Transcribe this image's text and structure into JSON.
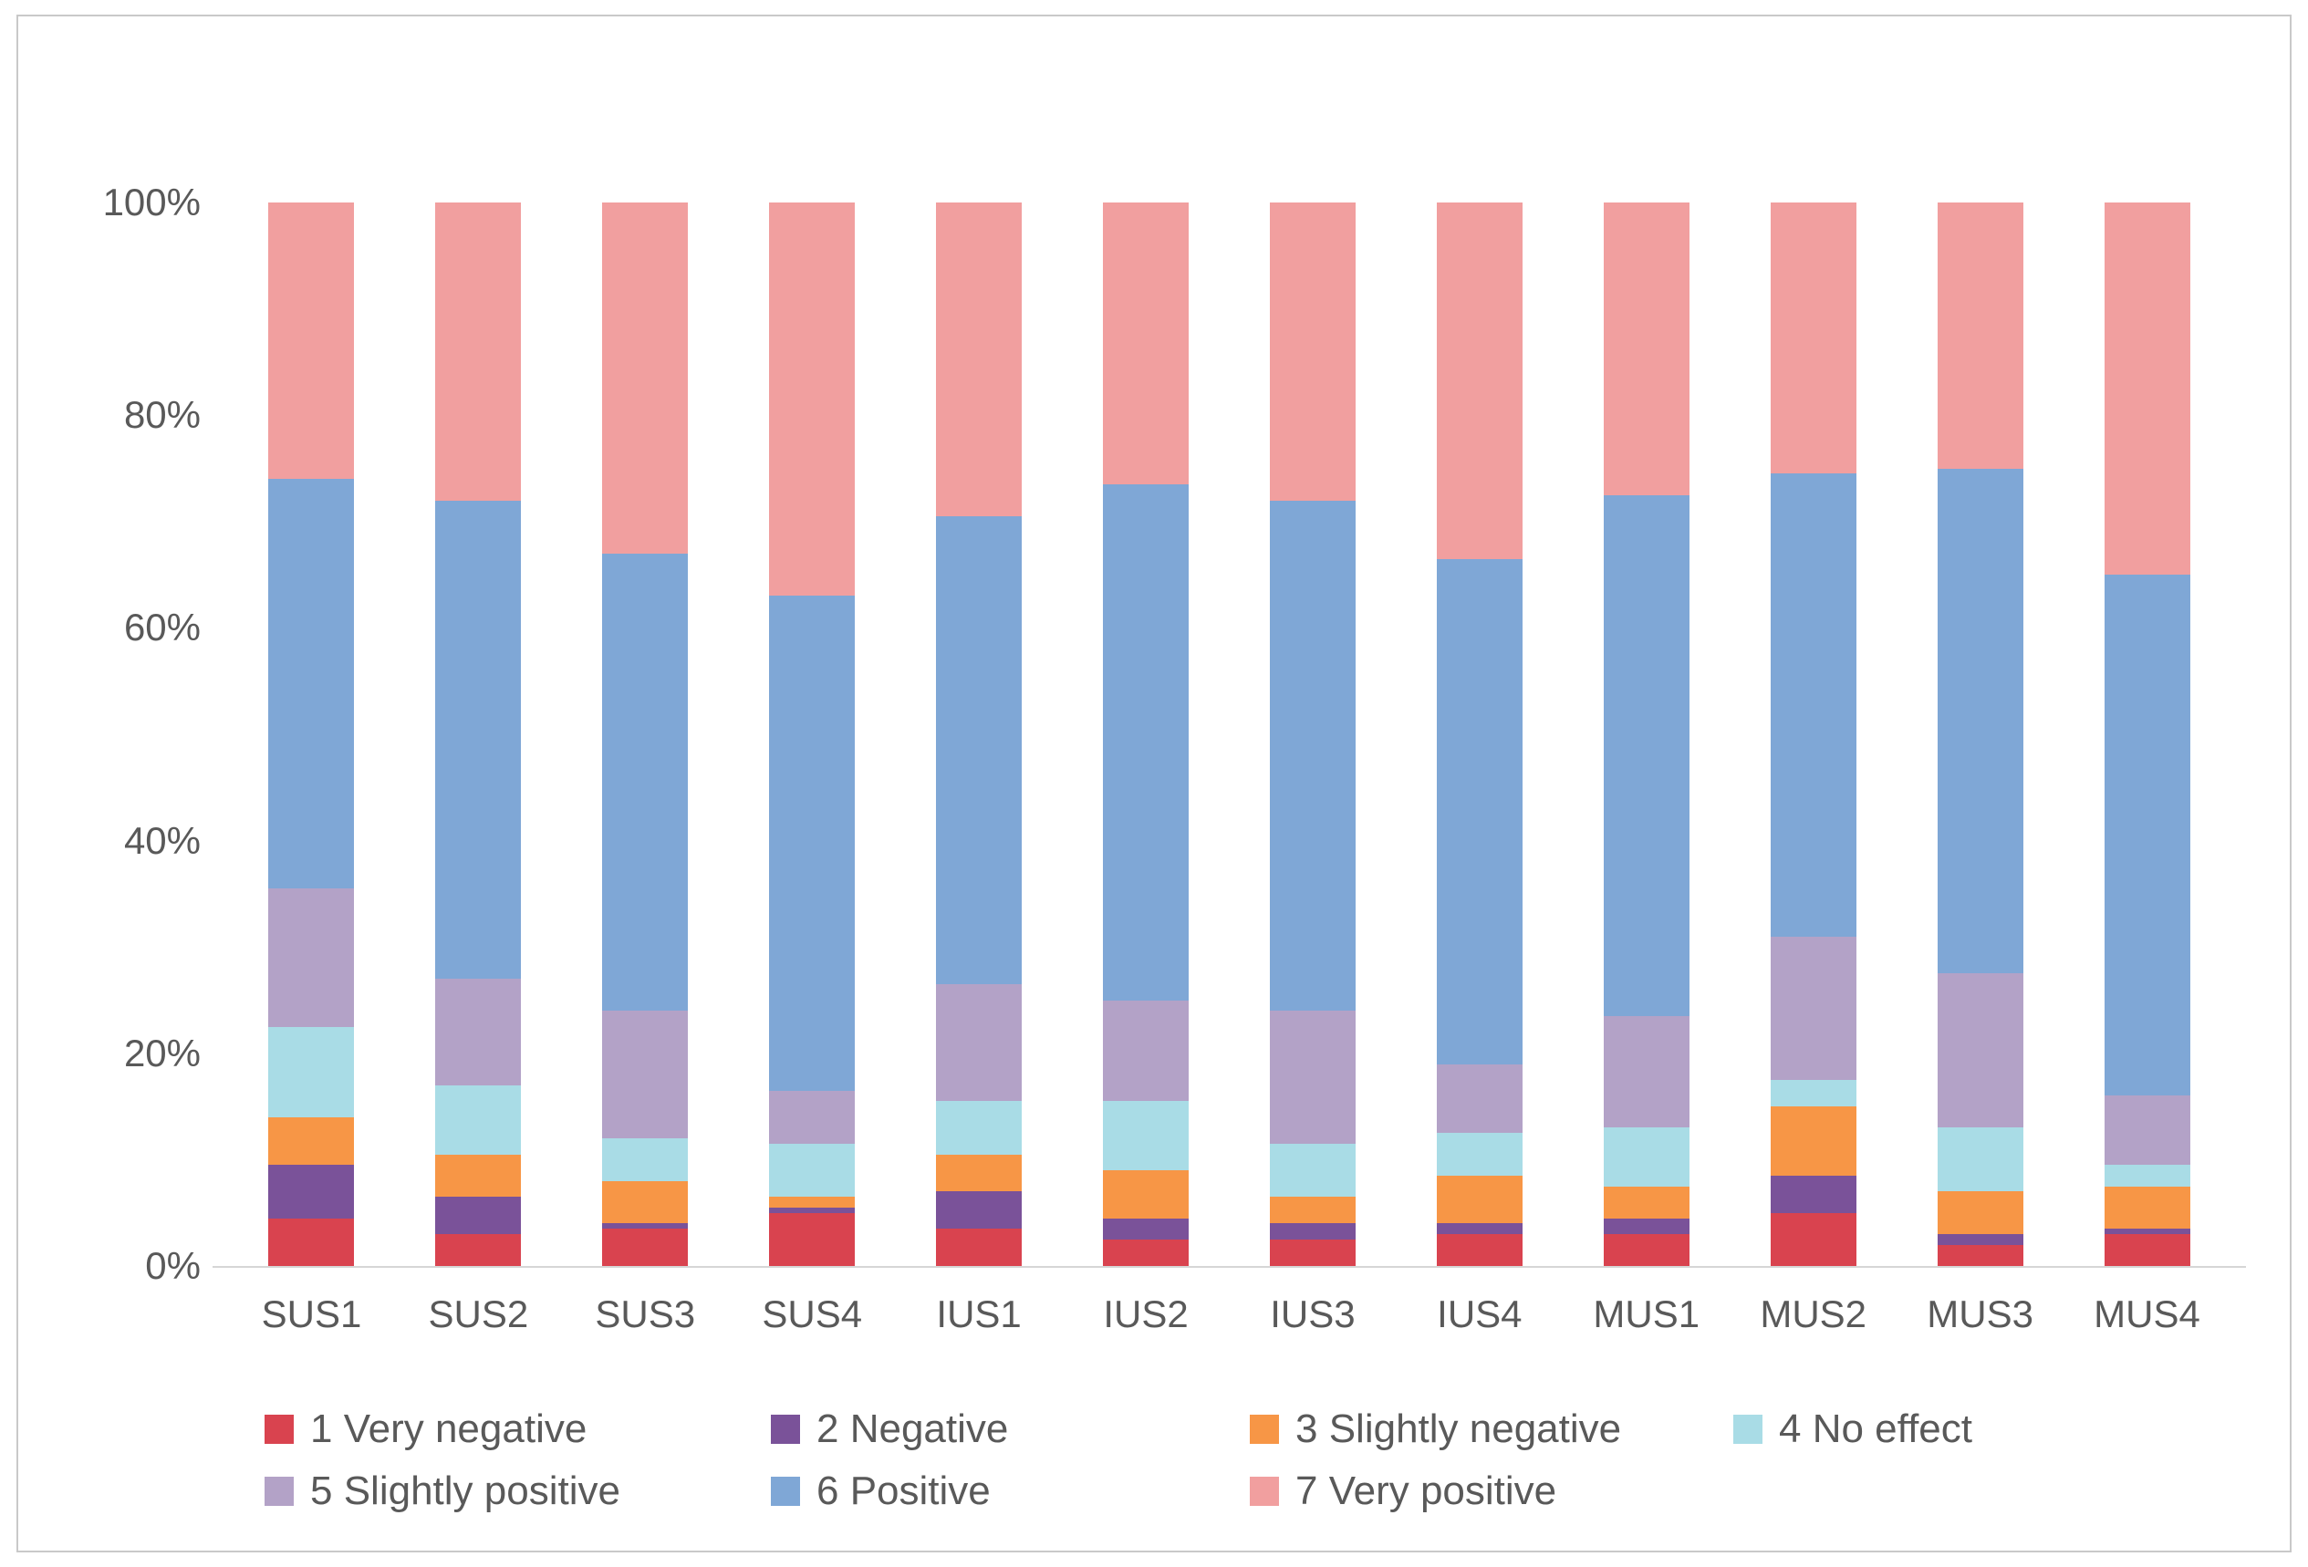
{
  "figure": {
    "background": "#ffffff",
    "border_color": "#c9c9c9",
    "text_color": "#595959",
    "axis_line_color": "#d6d6d6"
  },
  "chart_data": {
    "type": "bar",
    "stacked": true,
    "percent": true,
    "title": "",
    "xlabel": "",
    "ylabel": "",
    "ylim": [
      0,
      100
    ],
    "grid": false,
    "legend_position": "bottom-left",
    "legend_columns": 4,
    "categories": [
      "SUS1",
      "SUS2",
      "SUS3",
      "SUS4",
      "IUS1",
      "IUS2",
      "IUS3",
      "IUS4",
      "MUS1",
      "MUS2",
      "MUS3",
      "MUS4"
    ],
    "y_ticks": [
      {
        "value": 0,
        "label": "0%"
      },
      {
        "value": 20,
        "label": "20%"
      },
      {
        "value": 40,
        "label": "40%"
      },
      {
        "value": 60,
        "label": "60%"
      },
      {
        "value": 80,
        "label": "80%"
      },
      {
        "value": 100,
        "label": "100%"
      }
    ],
    "series": [
      {
        "name": "1 Very negative",
        "color": "#d9434f",
        "values": [
          4.5,
          3.0,
          3.5,
          5.0,
          3.5,
          2.5,
          2.5,
          3.0,
          3.0,
          5.0,
          2.0,
          3.0
        ]
      },
      {
        "name": "2 Negative",
        "color": "#7a5299",
        "values": [
          5.0,
          3.5,
          0.5,
          0.5,
          3.5,
          2.0,
          1.5,
          1.0,
          1.5,
          3.5,
          1.0,
          0.5
        ]
      },
      {
        "name": "3 Slightly negative",
        "color": "#f79646",
        "values": [
          4.5,
          4.0,
          4.0,
          1.0,
          3.5,
          4.5,
          2.5,
          4.5,
          3.0,
          6.5,
          4.0,
          4.0
        ]
      },
      {
        "name": "4 No effect",
        "color": "#a9dce6",
        "values": [
          8.5,
          6.5,
          4.0,
          5.0,
          5.0,
          6.5,
          5.0,
          4.0,
          5.5,
          2.5,
          6.0,
          2.0
        ]
      },
      {
        "name": "5 Slightly positive",
        "color": "#b3a2c7",
        "values": [
          13.0,
          10.0,
          12.0,
          5.0,
          11.0,
          9.5,
          12.5,
          6.5,
          10.5,
          13.5,
          14.5,
          6.5
        ]
      },
      {
        "name": "6 Positive",
        "color": "#7fa7d6",
        "values": [
          38.5,
          45.0,
          43.0,
          46.5,
          44.0,
          48.5,
          48.0,
          47.5,
          49.0,
          43.5,
          47.5,
          49.0
        ]
      },
      {
        "name": "7 Very positive",
        "color": "#f19f9f",
        "values": [
          26.0,
          28.0,
          33.0,
          37.0,
          29.5,
          26.5,
          28.0,
          33.5,
          27.5,
          25.5,
          25.0,
          35.0
        ]
      }
    ]
  }
}
